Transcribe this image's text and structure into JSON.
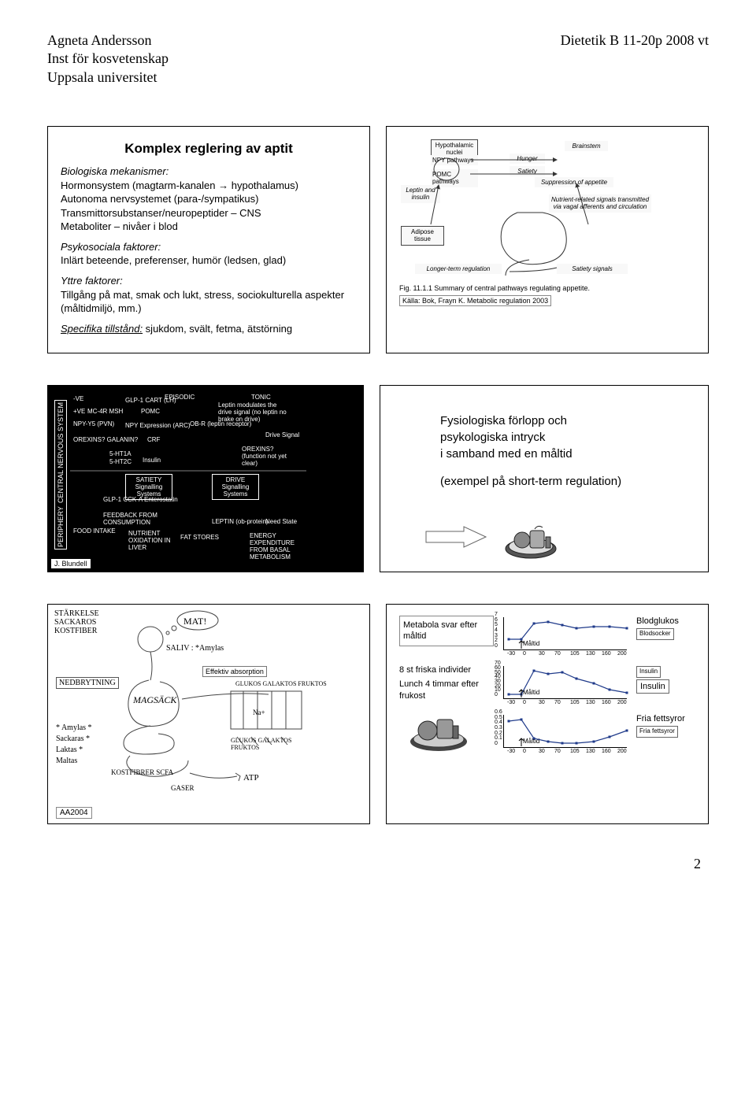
{
  "header": {
    "name": "Agneta Andersson",
    "dept": "Inst för kosvetenskap",
    "uni": "Uppsala universitet",
    "course": "Dietetik B 11-20p 2008 vt"
  },
  "slide1": {
    "title": "Komplex reglering av aptit",
    "bio_label": "Biologiska mekanismer:",
    "bio_l1": "Hormonsystem (magtarm-kanalen → hypothalamus)",
    "bio_l2": "Autonoma nervsystemet (para-/sympatikus)",
    "bio_l3": "Transmittorsubstanser/neuropeptider – CNS",
    "bio_l4": "Metaboliter – nivåer i blod",
    "psy_label": "Psykosociala faktorer:",
    "psy_l1": "Inlärt beteende, preferenser, humör (ledsen, glad)",
    "yttre_label": "Yttre faktorer:",
    "yttre_l1": "Tillgång på mat, smak och lukt, stress, sociokulturella aspekter (måltidmiljö, mm.)",
    "spec_label": "Specifika tillstånd:",
    "spec_txt": " sjukdom, svält, fetma, ätstörning"
  },
  "slide2": {
    "labels": {
      "hyp1": "Hypothalamic nuclei",
      "npy": "NPY pathways",
      "pomc": "POMC pathways",
      "brainstem": "Brainstem",
      "hunger": "Hunger",
      "satiety": "Satiety",
      "supp": "Suppression of appetite",
      "leptin": "Leptin and insulin",
      "adipose": "Adipose tissue",
      "nutrient": "Nutrient-related signals transmitted via vagal afferents and circulation",
      "longer": "Longer-term regulation",
      "satsig": "Satiety signals"
    },
    "caption": "Fig. 11.1.1   Summary of central pathways regulating appetite.",
    "source": "Källa: Bok, Frayn K. Metabolic regulation 2003"
  },
  "slide3": {
    "side_top": "CENTRAL NERVOUS SYSTEM",
    "side_bot": "PERIPHERY",
    "labels": {
      "episodic": "EPISODIC",
      "tonic": "TONIC",
      "glp1": "GLP-1 CART (LH)",
      "mc4r": "MC-4R  MSH",
      "pomc": "POMC",
      "npyy5": "NPY-Y5 (PVN)",
      "npy": "NPY Expression (ARC)",
      "orexins": "OREXINS? GALANIN?",
      "crf": "CRF",
      "ht1a": "5-HT1A",
      "ht2c": "5-HT2C",
      "insulin": "Insulin",
      "obr": "OB-R (leptin receptor)",
      "leptinmod": "Leptin modulates the drive signal (no leptin no brake on drive)",
      "drive": "Drive Signal",
      "orexins2": "OREXINS? (function not yet clear)",
      "satiety_box": "SATIETY Signalling Systems",
      "drive_box": "DRIVE Signalling Systems",
      "glpcck": "GLP-1 CCK-A Enterostatin",
      "feedback": "FEEDBACK FROM CONSUMPTION",
      "food": "FOOD INTAKE",
      "nutrient": "NUTRIENT OXIDATION IN LIVER",
      "fat": "FAT STORES",
      "leptin": "LEPTIN (ob-protein)",
      "need": "Need State",
      "energy": "ENERGY EXPENDITURE FROM BASAL METABOLISM",
      "pve": "+VE",
      "nve": "-VE"
    },
    "tag": "J. Blundell"
  },
  "slide4": {
    "l1": "Fysiologiska förlopp och",
    "l2": "psykologiska intryck",
    "l3": "i samband med en måltid",
    "l4": "(exempel på short-term regulation)"
  },
  "slide5": {
    "top_words": "STÄRKELSE  SACKAROS  KOSTFIBER",
    "mat": "MAT!",
    "saliv": "SALIV : *Amylas",
    "nedbrytning": "NEDBRYTNING",
    "magsack": "MAGSÄCK",
    "glukos": "GLUKOS GALAKTOS FRUKTOS",
    "na": "Na+",
    "left_list": "* Amylas  * Sackaras  * Laktas  * Maltas",
    "bottom": "GLUKOS  GALAKTOS  FRUKTOS",
    "kost": "KOSTFIBRER  SCFA",
    "gaser": "GASER",
    "atp": "ATP",
    "eff_abs": "Effektiv absorption",
    "aa": "AA2004"
  },
  "slide6": {
    "box1": "Metabola svar efter måltid",
    "chart1_title": "Blodglukos",
    "chart1_legend": "Blodsocker",
    "chart2_title": "Insulin",
    "chart2_legend": "Insulin",
    "chart3_title": "Fria fettsyror",
    "chart3_legend": "Fria fettsyror",
    "desc1": "8 st friska individer",
    "desc2": "Lunch 4 timmar efter frukost",
    "maltid": "Måltid",
    "xticks": [
      "-30",
      "0",
      "30",
      "70",
      "105",
      "130",
      "160",
      "200"
    ],
    "glucose": {
      "yticks": [
        "0",
        "2",
        "3",
        "4",
        "5",
        "6",
        "7"
      ],
      "points": [
        [
          6,
          28
        ],
        [
          22,
          28
        ],
        [
          38,
          8
        ],
        [
          56,
          6
        ],
        [
          74,
          10
        ],
        [
          92,
          14
        ],
        [
          114,
          12
        ],
        [
          134,
          12
        ],
        [
          156,
          14
        ]
      ],
      "color": "#1f3a8a"
    },
    "insulin": {
      "yticks": [
        "0",
        "10",
        "20",
        "30",
        "40",
        "50",
        "60",
        "70"
      ],
      "points": [
        [
          6,
          36
        ],
        [
          22,
          36
        ],
        [
          38,
          6
        ],
        [
          56,
          10
        ],
        [
          74,
          8
        ],
        [
          92,
          16
        ],
        [
          114,
          22
        ],
        [
          134,
          30
        ],
        [
          156,
          34
        ]
      ],
      "color": "#1f3a8a"
    },
    "ffa": {
      "yticks": [
        "0",
        "0.1",
        "0.2",
        "0.3",
        "0.4",
        "0.5",
        "0.6"
      ],
      "points": [
        [
          6,
          8
        ],
        [
          22,
          6
        ],
        [
          38,
          30
        ],
        [
          56,
          34
        ],
        [
          74,
          36
        ],
        [
          92,
          36
        ],
        [
          114,
          34
        ],
        [
          134,
          28
        ],
        [
          156,
          20
        ]
      ],
      "color": "#1f3a8a"
    }
  },
  "page_number": "2"
}
